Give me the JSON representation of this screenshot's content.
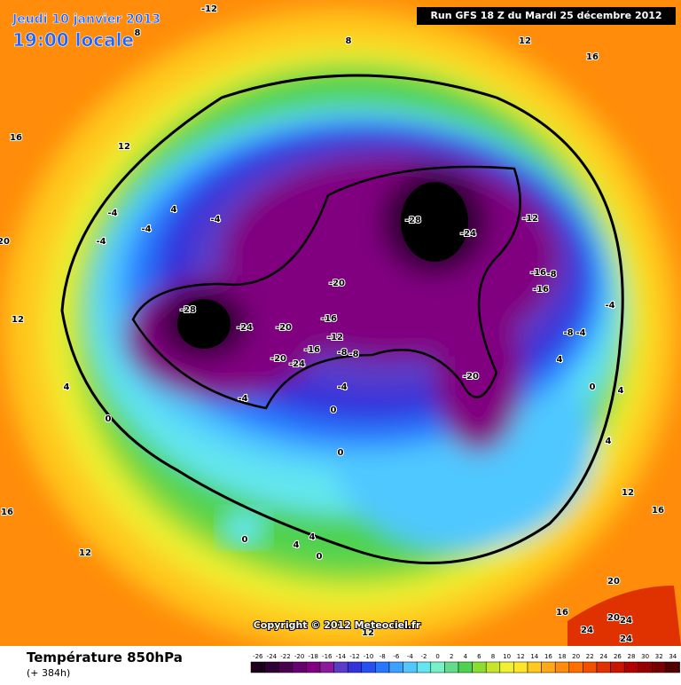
{
  "header": {
    "date": "Jeudi 10 janvier 2013",
    "time": "19:00 locale",
    "run": "Run GFS 18 Z du Mardi 25 décembre 2012"
  },
  "copyright": "Copyright © 2012 Meteociel.fr",
  "footer": {
    "title": "Température 850hPa",
    "lead": "(+ 384h)"
  },
  "legend": {
    "labels": [
      -26,
      -24,
      -22,
      -20,
      -18,
      -16,
      -14,
      -12,
      -10,
      -8,
      -6,
      -4,
      -2,
      0,
      2,
      4,
      6,
      8,
      10,
      12,
      14,
      16,
      18,
      20,
      22,
      24,
      26,
      28,
      30,
      32,
      34
    ],
    "colors": [
      "#1a001a",
      "#2e0033",
      "#4a0050",
      "#66006e",
      "#800080",
      "#8c1a9c",
      "#5a3cc8",
      "#3232dc",
      "#2850f0",
      "#2878ff",
      "#3ca0ff",
      "#50c8ff",
      "#64e6f0",
      "#78f0c8",
      "#64dc8c",
      "#50d250",
      "#8cdc32",
      "#c8e628",
      "#f0f032",
      "#ffe628",
      "#ffc81e",
      "#ffaa14",
      "#ff8c0a",
      "#ff6e00",
      "#f05000",
      "#e03200",
      "#c81400",
      "#b40000",
      "#960000",
      "#780000",
      "#500000"
    ]
  },
  "map": {
    "contour_labels": [
      -12,
      8,
      8,
      12,
      16,
      16,
      12,
      4,
      -4,
      -4,
      -4,
      -4,
      20,
      -28,
      -24,
      -12,
      -16,
      -8,
      -16,
      -28,
      -20,
      -16,
      -12,
      -20,
      -24,
      -16,
      -8,
      -8,
      -20,
      -24,
      -4,
      -4,
      -20,
      -4,
      -8,
      -4,
      4,
      0,
      4,
      4,
      0,
      0,
      0,
      4,
      12,
      16,
      16,
      0,
      4,
      4,
      0,
      12,
      20,
      16,
      20,
      24,
      24,
      24,
      12,
      12
    ]
  }
}
